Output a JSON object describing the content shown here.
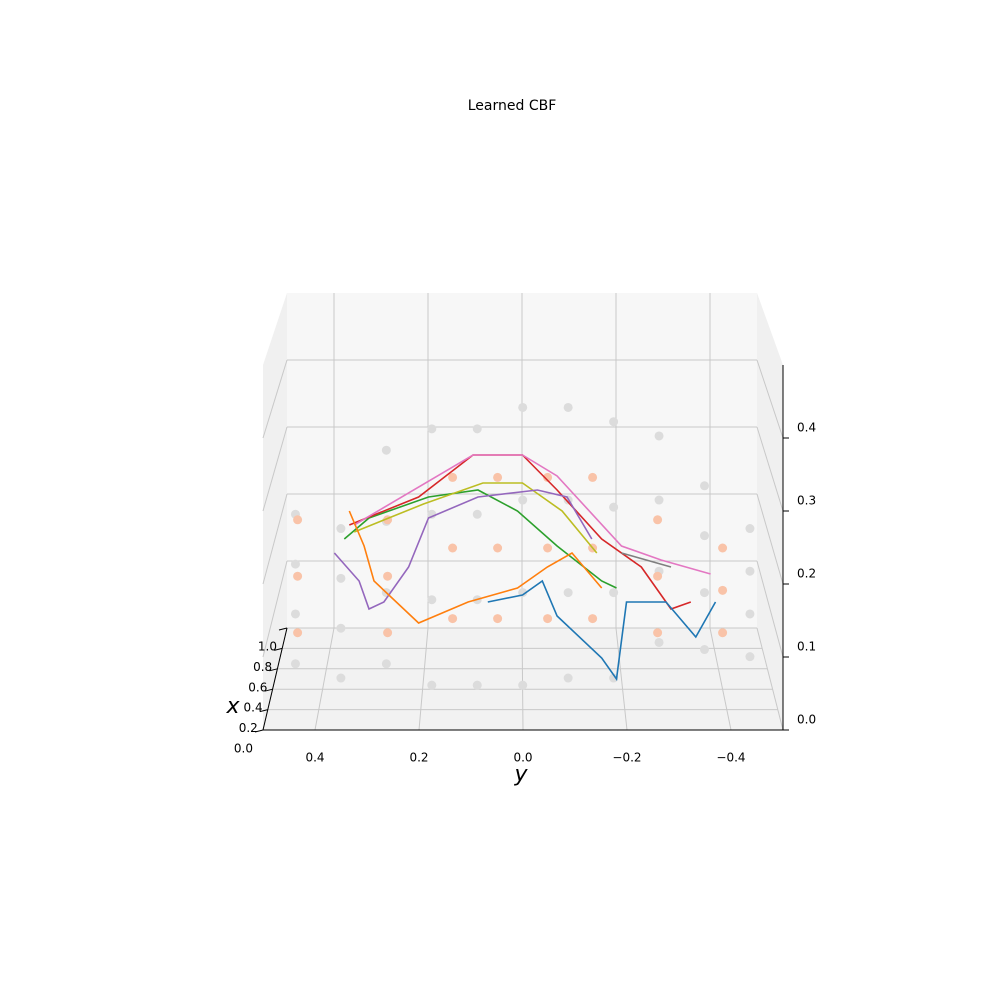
{
  "chart_data": {
    "type": "scatter3d",
    "title": "Learned CBF",
    "x_label": "x",
    "y_label": "y",
    "xlim": [
      0,
      1
    ],
    "ylim": [
      -0.5,
      0.5
    ],
    "zlim": [
      0,
      0.5
    ],
    "xticks": [
      {
        "value": 0,
        "label": "0.0"
      },
      0.2,
      0.4,
      0.6,
      0.8,
      {
        "value": 1,
        "label": "1.0"
      }
    ],
    "yticks": [
      0.4,
      0.2,
      {
        "value": 0,
        "label": "0.0"
      },
      {
        "value": -0.2,
        "label": "−0.2"
      },
      {
        "value": -0.4,
        "label": "−0.4"
      }
    ],
    "zticks": [
      {
        "value": 0,
        "label": "0.0"
      },
      0.1,
      0.2,
      0.3,
      0.4
    ],
    "grid": true,
    "points": [
      {
        "color": "#dcdcdc",
        "x": [
          0.3,
          0.3,
          0.3,
          0.3,
          0.3,
          0.3,
          0.3,
          0.3,
          0.3,
          0.3,
          0.3,
          0.3,
          0.3,
          0.3,
          0.3,
          0.3,
          0.3,
          0.3,
          0.3,
          0.3,
          0.3,
          0.3,
          0.3,
          0.3,
          0.3,
          0.3,
          0.3,
          0.3,
          0.3,
          0.3,
          0.3,
          0.3,
          0.3,
          0.3,
          0.3,
          0.3,
          0.3,
          0.3,
          0.3,
          0.3,
          0.3,
          0.3,
          0.3,
          0.3
        ],
        "y": [
          0.45,
          0.45,
          0.45,
          0.45,
          0.36,
          0.36,
          0.36,
          0.36,
          0.27,
          0.27,
          0.27,
          0.27,
          0.18,
          0.18,
          0.18,
          0.18,
          0.09,
          0.09,
          0.09,
          0.09,
          0,
          0,
          0,
          0,
          -0.09,
          -0.09,
          -0.09,
          -0.09,
          -0.18,
          -0.18,
          -0.18,
          -0.18,
          -0.27,
          -0.27,
          -0.27,
          -0.27,
          -0.36,
          -0.36,
          -0.36,
          -0.36,
          -0.45,
          -0.45,
          -0.45,
          -0.45
        ],
        "z": [
          0.05,
          0.12,
          0.19,
          0.26,
          0.03,
          0.1,
          0.17,
          0.24,
          0.05,
          0.15,
          0.25,
          0.35,
          0.02,
          0.14,
          0.26,
          0.38,
          0.02,
          0.14,
          0.26,
          0.38,
          0.02,
          0.15,
          0.28,
          0.41,
          0.03,
          0.15,
          0.28,
          0.41,
          0.03,
          0.15,
          0.27,
          0.39,
          0.08,
          0.18,
          0.28,
          0.37,
          0.07,
          0.15,
          0.23,
          0.3,
          0.06,
          0.12,
          0.18,
          0.24
        ]
      },
      {
        "color": "#f9c3a8",
        "x": [
          0.4,
          0.4,
          0.4,
          0.4,
          0.4,
          0.4,
          0.4,
          0.4,
          0.4,
          0.4,
          0.4,
          0.4,
          0.4,
          0.4,
          0.4,
          0.4,
          0.4,
          0.4,
          0.4,
          0.4,
          0.4,
          0.4,
          0.4,
          0.4
        ],
        "y": [
          0.45,
          0.45,
          0.45,
          0.27,
          0.27,
          0.27,
          0.14,
          0.14,
          0.14,
          0.05,
          0.05,
          0.05,
          -0.05,
          -0.05,
          -0.05,
          -0.14,
          -0.14,
          -0.14,
          -0.27,
          -0.27,
          -0.27,
          -0.4,
          -0.4,
          -0.4
        ],
        "z": [
          0.08,
          0.16,
          0.24,
          0.08,
          0.16,
          0.24,
          0.1,
          0.2,
          0.3,
          0.1,
          0.2,
          0.3,
          0.1,
          0.2,
          0.3,
          0.1,
          0.2,
          0.3,
          0.08,
          0.16,
          0.24,
          0.08,
          0.14,
          0.2
        ]
      }
    ],
    "series": [
      {
        "color": "#2ca02c",
        "x": [
          0.5,
          0.5,
          0.5,
          0.5,
          0.5,
          0.5,
          0.5,
          0.5
        ],
        "y": [
          0.36,
          0.31,
          0.19,
          0.09,
          0.01,
          -0.07,
          -0.16,
          -0.19
        ],
        "z": [
          0.2,
          0.23,
          0.26,
          0.27,
          0.24,
          0.19,
          0.14,
          0.13
        ]
      },
      {
        "color": "#bcbd22",
        "x": [
          0.5,
          0.5,
          0.5,
          0.5,
          0.5,
          0.5
        ],
        "y": [
          0.34,
          0.2,
          0.08,
          0,
          -0.08,
          -0.15
        ],
        "z": [
          0.21,
          0.25,
          0.28,
          0.28,
          0.24,
          0.18
        ]
      },
      {
        "color": "#d62728",
        "x": [
          0.5,
          0.5,
          0.5,
          0.5,
          0.5,
          0.5,
          0.5,
          0.5,
          0.5
        ],
        "y": [
          0.35,
          0.21,
          0.1,
          0,
          -0.07,
          -0.16,
          -0.24,
          -0.3,
          -0.34
        ],
        "z": [
          0.22,
          0.26,
          0.32,
          0.32,
          0.27,
          0.2,
          0.16,
          0.1,
          0.11
        ]
      },
      {
        "color": "#e377c2",
        "x": [
          0.5,
          0.5,
          0.5,
          0.5,
          0.5,
          0.5,
          0.5
        ],
        "y": [
          0.34,
          0.1,
          0,
          -0.07,
          -0.2,
          -0.28,
          -0.38
        ],
        "z": [
          0.22,
          0.32,
          0.32,
          0.29,
          0.19,
          0.17,
          0.15
        ]
      },
      {
        "color": "#7f7f7f",
        "x": [
          0.5,
          0.5
        ],
        "y": [
          -0.2,
          -0.3
        ],
        "z": [
          0.18,
          0.16
        ]
      },
      {
        "color": "#9467bd",
        "x": [
          0.5,
          0.5,
          0.5,
          0.5,
          0.5,
          0.5,
          0.5,
          0.5,
          0.5,
          0.5
        ],
        "y": [
          0.38,
          0.33,
          0.31,
          0.28,
          0.23,
          0.19,
          0.09,
          -0.03,
          -0.09,
          -0.14
        ],
        "z": [
          0.18,
          0.14,
          0.1,
          0.11,
          0.16,
          0.23,
          0.26,
          0.27,
          0.26,
          0.2
        ]
      },
      {
        "color": "#ff7f0e",
        "x": [
          0.5,
          0.5,
          0.5,
          0.5,
          0.5,
          0.5,
          0.5,
          0.5,
          0.5
        ],
        "y": [
          0.35,
          0.32,
          0.3,
          0.21,
          0.11,
          0.01,
          -0.05,
          -0.1,
          -0.16
        ],
        "z": [
          0.24,
          0.19,
          0.14,
          0.08,
          0.11,
          0.13,
          0.16,
          0.18,
          0.13
        ]
      },
      {
        "color": "#1f77b4",
        "x": [
          0.5,
          0.5,
          0.5,
          0.5,
          0.5,
          0.5,
          0.5,
          0.5,
          0.5,
          0.5
        ],
        "y": [
          0.07,
          0,
          -0.04,
          -0.07,
          -0.16,
          -0.19,
          -0.21,
          -0.29,
          -0.35,
          -0.39
        ],
        "z": [
          0.11,
          0.12,
          0.14,
          0.09,
          0.03,
          0,
          0.11,
          0.11,
          0.06,
          0.11
        ]
      }
    ]
  }
}
